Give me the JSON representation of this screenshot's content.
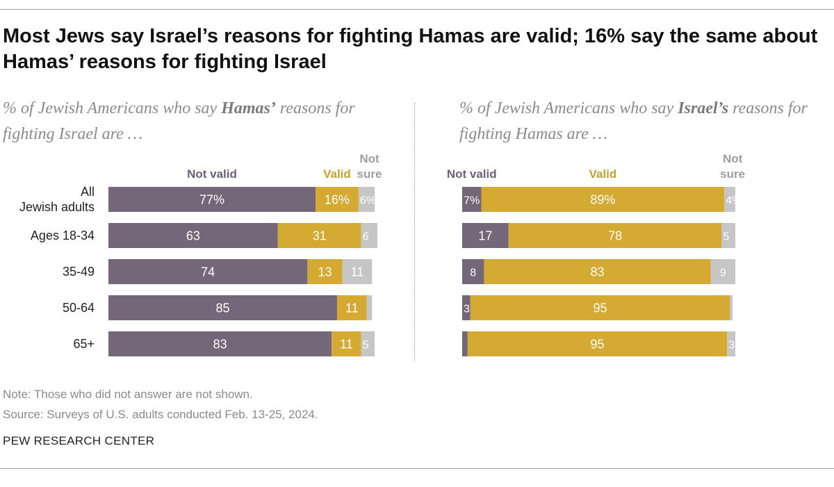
{
  "title": "Most Jews say Israel’s reasons for fighting Hamas are valid; 16% say the same about Hamas’ reasons for fighting Israel",
  "left_subtitle": {
    "pre": "% of Jewish Americans who say ",
    "bold": "Hamas’",
    "post": " reasons for fighting Israel are …"
  },
  "right_subtitle": {
    "pre": "% of Jewish Americans who say ",
    "bold": "Israel’s",
    "post": " reasons for fighting Hamas are …"
  },
  "note": "Note: Those who did not answer are not shown.",
  "source": "Source: Surveys of U.S. adults conducted Feb. 13-25, 2024.",
  "brand": "PEW RESEARCH CENTER",
  "colors": {
    "not_valid": "#736779",
    "valid": "#d4aa32",
    "not_sure": "#c6c6c6",
    "not_valid_label": "#6b6075",
    "valid_label": "#c8a12c",
    "not_sure_label": "#9e9e9e"
  },
  "chart_data": [
    {
      "type": "bar",
      "stacked": true,
      "orientation": "horizontal",
      "categories": [
        "All\nJewish adults",
        "Ages 18-34",
        "35-49",
        "50-64",
        "65+"
      ],
      "series": [
        {
          "name": "Not valid",
          "values": [
            77,
            63,
            74,
            85,
            83
          ],
          "labels": [
            "77%",
            "63",
            "74",
            "85",
            "83"
          ]
        },
        {
          "name": "Valid",
          "values": [
            16,
            31,
            13,
            11,
            11
          ],
          "labels": [
            "16%",
            "31",
            "13",
            "11",
            "11"
          ]
        },
        {
          "name": "Not sure",
          "values": [
            6,
            6,
            11,
            2,
            5
          ],
          "labels": [
            "6%",
            "6",
            "11",
            "",
            "5"
          ]
        }
      ],
      "legend_headers": [
        "Not valid",
        "Valid",
        "Not sure"
      ]
    },
    {
      "type": "bar",
      "stacked": true,
      "orientation": "horizontal",
      "categories": [
        "All\nJewish adults",
        "Ages 18-34",
        "35-49",
        "50-64",
        "65+"
      ],
      "series": [
        {
          "name": "Not valid",
          "values": [
            7,
            17,
            8,
            3,
            2
          ],
          "labels": [
            "7%",
            "17",
            "8",
            "3",
            ""
          ]
        },
        {
          "name": "Valid",
          "values": [
            89,
            78,
            83,
            95,
            95
          ],
          "labels": [
            "89%",
            "78",
            "83",
            "95",
            "95"
          ]
        },
        {
          "name": "Not sure",
          "values": [
            4,
            5,
            9,
            1,
            3
          ],
          "labels": [
            "4%",
            "5",
            "9",
            "",
            "3"
          ]
        }
      ],
      "legend_headers": [
        "Not valid",
        "Valid",
        "Not sure"
      ]
    }
  ]
}
